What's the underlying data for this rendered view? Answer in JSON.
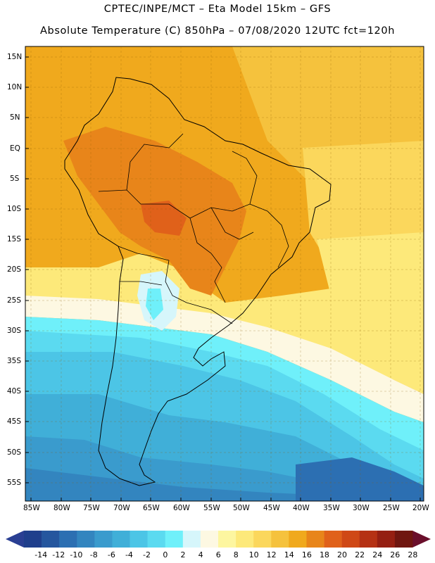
{
  "header": {
    "line1": "CPTEC/INPE/MCT –  Eta Model 15km – GFS",
    "line2": "Absolute Temperature (C) 850hPa – 07/08/2020 12UTC fct=120h"
  },
  "axes": {
    "lat_labels": [
      "15N",
      "10N",
      "5N",
      "EQ",
      "5S",
      "10S",
      "15S",
      "20S",
      "25S",
      "30S",
      "35S",
      "40S",
      "45S",
      "50S",
      "55S"
    ],
    "lon_labels": [
      "85W",
      "80W",
      "75W",
      "70W",
      "65W",
      "60W",
      "55W",
      "50W",
      "45W",
      "40W",
      "35W",
      "30W",
      "25W",
      "20W"
    ]
  },
  "colorbar": {
    "labels": [
      "-14",
      "-12",
      "-10",
      "-8",
      "-6",
      "-4",
      "-2",
      "0",
      "2",
      "4",
      "6",
      "8",
      "10",
      "12",
      "14",
      "16",
      "18",
      "20",
      "22",
      "24",
      "26",
      "28"
    ],
    "colors": [
      "#1f3f8c",
      "#25569e",
      "#2c6fb2",
      "#3385bf",
      "#3a9bcd",
      "#40afd8",
      "#4cc5e6",
      "#5bdaf0",
      "#6ff0fa",
      "#d6f6fb",
      "#fdf8e2",
      "#fdf6a0",
      "#fde97a",
      "#fbd75c",
      "#f5c23d",
      "#f0a91d",
      "#e8851a",
      "#e0611a",
      "#cf4816",
      "#b53114",
      "#951f12",
      "#6f1610"
    ],
    "left_arrow_color": "#2a3f93",
    "right_arrow_color": "#6a0f2b"
  }
}
